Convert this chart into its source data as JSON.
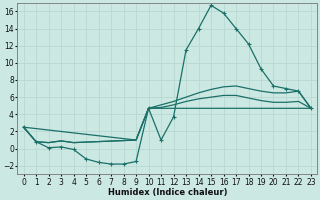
{
  "xlabel": "Humidex (Indice chaleur)",
  "bg_color": "#cce8e3",
  "line_color": "#1a7068",
  "grid_color": "#b8d8d2",
  "xlim": [
    -0.5,
    23.5
  ],
  "ylim": [
    -3,
    17
  ],
  "xticks": [
    0,
    1,
    2,
    3,
    4,
    5,
    6,
    7,
    8,
    9,
    10,
    11,
    12,
    13,
    14,
    15,
    16,
    17,
    18,
    19,
    20,
    21,
    22,
    23
  ],
  "yticks": [
    -2,
    0,
    2,
    4,
    6,
    8,
    10,
    12,
    14,
    16
  ],
  "main_x": [
    0,
    1,
    2,
    3,
    4,
    5,
    6,
    7,
    8,
    9,
    10,
    11,
    12,
    13,
    14,
    15,
    16,
    17,
    18,
    19,
    20,
    21,
    22,
    23
  ],
  "main_y": [
    2.5,
    0.8,
    0.1,
    0.2,
    -0.1,
    -1.2,
    -1.6,
    -1.8,
    -1.8,
    -1.5,
    4.7,
    1.0,
    3.7,
    11.5,
    14.0,
    16.7,
    15.8,
    14.0,
    12.2,
    9.3,
    7.3,
    7.0,
    6.7,
    4.7
  ],
  "curve1_x": [
    0,
    1,
    2,
    3,
    4,
    9,
    10,
    11,
    12,
    13,
    14,
    15,
    16,
    17,
    18,
    19,
    20,
    21,
    22,
    23
  ],
  "curve1_y": [
    2.5,
    0.8,
    0.7,
    0.9,
    0.7,
    1.0,
    4.7,
    5.1,
    5.5,
    6.0,
    6.5,
    6.9,
    7.2,
    7.3,
    7.0,
    6.7,
    6.5,
    6.5,
    6.7,
    4.7
  ],
  "curve2_x": [
    0,
    1,
    2,
    3,
    4,
    9,
    10,
    11,
    12,
    13,
    14,
    15,
    16,
    17,
    18,
    19,
    20,
    21,
    22,
    23
  ],
  "curve2_y": [
    2.5,
    0.8,
    0.7,
    0.9,
    0.7,
    1.0,
    4.7,
    4.8,
    5.1,
    5.5,
    5.8,
    6.0,
    6.2,
    6.2,
    5.9,
    5.6,
    5.4,
    5.4,
    5.5,
    4.7
  ],
  "curve3_x": [
    0,
    9,
    10,
    23
  ],
  "curve3_y": [
    2.5,
    1.0,
    4.7,
    4.7
  ]
}
